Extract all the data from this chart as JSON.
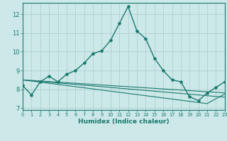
{
  "xlabel": "Humidex (Indice chaleur)",
  "background_color": "#cce8e8",
  "grid_color": "#aacccc",
  "line_color": "#1a7a6e",
  "x_ticks": [
    0,
    1,
    2,
    3,
    4,
    5,
    6,
    7,
    8,
    9,
    10,
    11,
    12,
    13,
    14,
    15,
    16,
    17,
    18,
    19,
    20,
    21,
    22,
    23
  ],
  "y_ticks": [
    7,
    8,
    9,
    10,
    11,
    12
  ],
  "xlim": [
    0,
    23
  ],
  "ylim": [
    6.9,
    12.6
  ],
  "series": [
    {
      "x": [
        0,
        1,
        2,
        3,
        4,
        5,
        6,
        7,
        8,
        9,
        10,
        11,
        12,
        13,
        14,
        15,
        16,
        17,
        18,
        19,
        20,
        21,
        22,
        23
      ],
      "y": [
        8.2,
        7.7,
        8.4,
        8.7,
        8.4,
        8.8,
        9.0,
        9.4,
        9.9,
        10.05,
        10.6,
        11.5,
        12.4,
        11.1,
        10.7,
        9.65,
        9.0,
        8.5,
        8.4,
        7.6,
        7.4,
        7.8,
        8.1,
        8.4
      ],
      "marker": true,
      "lw": 1.0
    },
    {
      "x": [
        0,
        1,
        2,
        3,
        4,
        5,
        6,
        7,
        8,
        9,
        10,
        11,
        12,
        13,
        14,
        15,
        16,
        17,
        18,
        19,
        20,
        21,
        22,
        23
      ],
      "y": [
        8.5,
        8.47,
        8.44,
        8.41,
        8.38,
        8.35,
        8.32,
        8.29,
        8.26,
        8.23,
        8.2,
        8.17,
        8.14,
        8.11,
        8.08,
        8.05,
        8.02,
        7.99,
        7.96,
        7.93,
        7.9,
        7.87,
        7.84,
        7.81
      ],
      "marker": false,
      "lw": 0.8
    },
    {
      "x": [
        0,
        1,
        2,
        3,
        4,
        5,
        6,
        7,
        8,
        9,
        10,
        11,
        12,
        13,
        14,
        15,
        16,
        17,
        18,
        19,
        20,
        21,
        22,
        23
      ],
      "y": [
        8.5,
        8.46,
        8.42,
        8.38,
        8.34,
        8.3,
        8.26,
        8.22,
        8.18,
        8.14,
        8.1,
        8.06,
        8.02,
        7.98,
        7.94,
        7.9,
        7.86,
        7.82,
        7.78,
        7.74,
        7.7,
        7.66,
        7.62,
        7.58
      ],
      "marker": false,
      "lw": 0.8
    },
    {
      "x": [
        0,
        1,
        2,
        3,
        4,
        5,
        6,
        7,
        8,
        9,
        10,
        11,
        12,
        13,
        14,
        15,
        16,
        17,
        18,
        19,
        20,
        21,
        22,
        23
      ],
      "y": [
        8.5,
        8.44,
        8.38,
        8.32,
        8.26,
        8.2,
        8.14,
        8.08,
        8.02,
        7.96,
        7.9,
        7.84,
        7.78,
        7.72,
        7.66,
        7.6,
        7.54,
        7.48,
        7.42,
        7.36,
        7.3,
        7.24,
        7.5,
        7.75
      ],
      "marker": false,
      "lw": 0.8
    }
  ]
}
